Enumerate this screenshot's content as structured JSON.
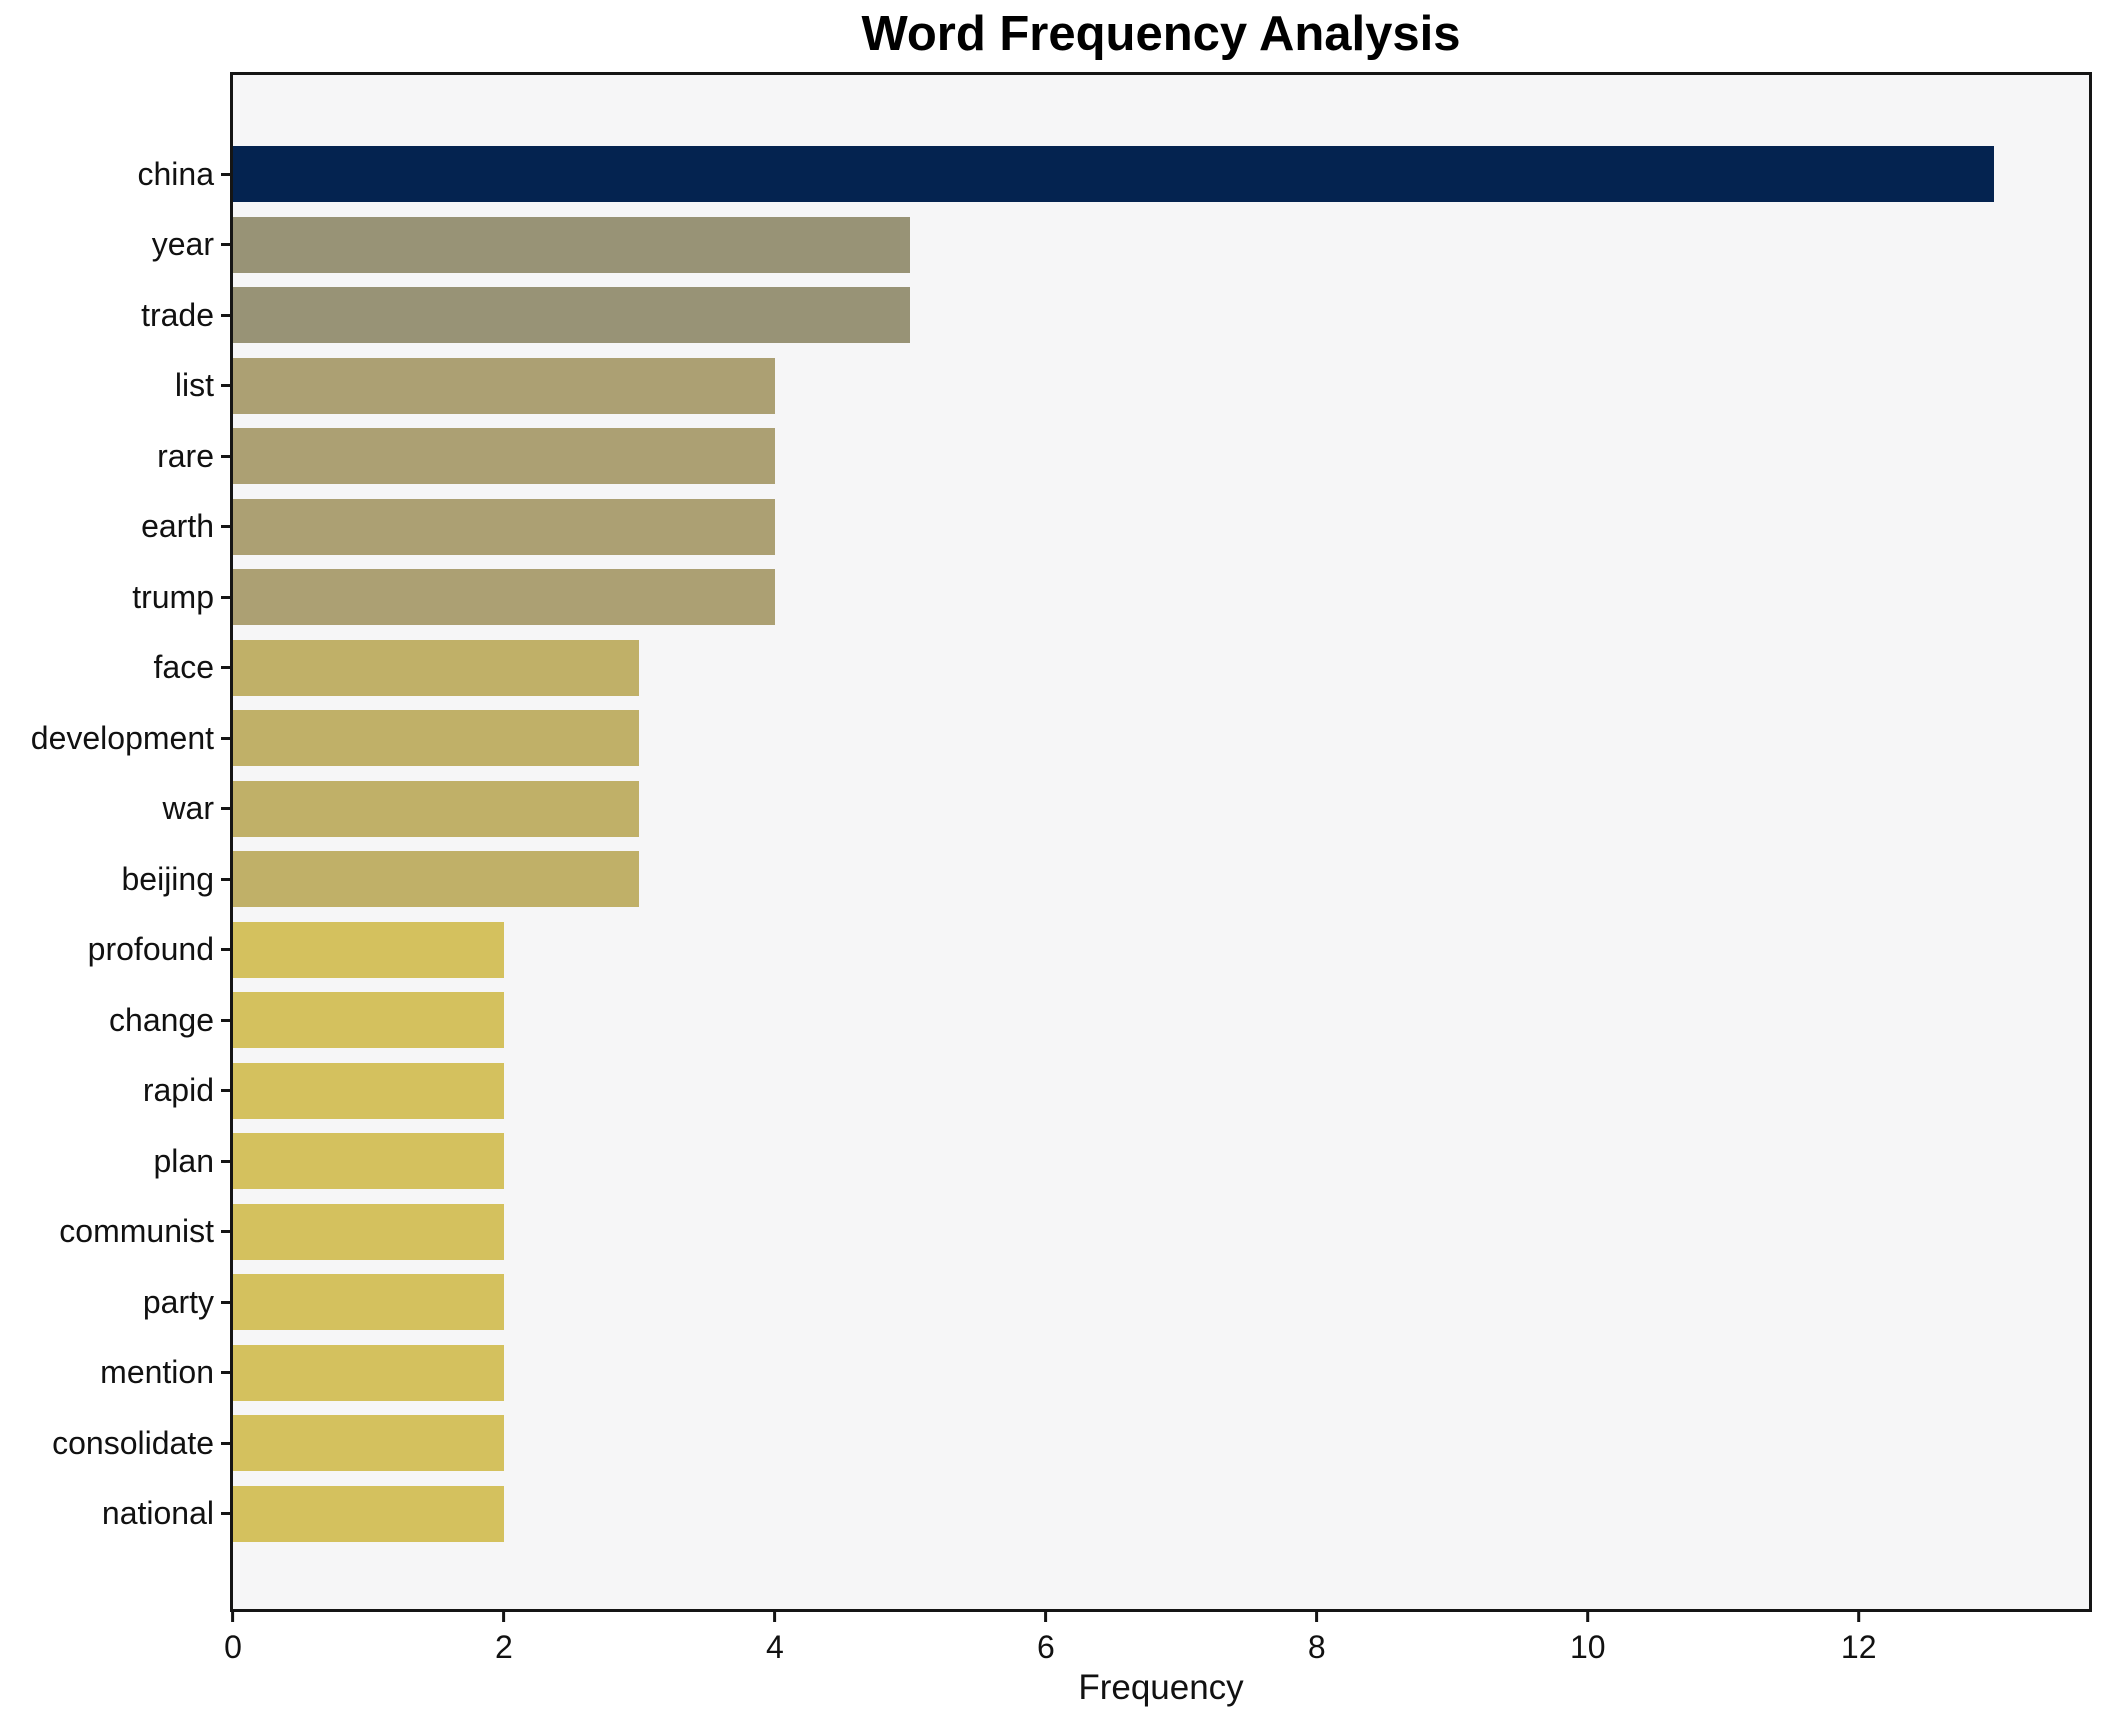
{
  "title": "Word Frequency Analysis",
  "chart_data": {
    "type": "bar",
    "orientation": "horizontal",
    "title": "Word Frequency Analysis",
    "xlabel": "Frequency",
    "ylabel": "",
    "categories": [
      "china",
      "year",
      "trade",
      "list",
      "rare",
      "earth",
      "trump",
      "face",
      "development",
      "war",
      "beijing",
      "profound",
      "change",
      "rapid",
      "plan",
      "communist",
      "party",
      "mention",
      "consolidate",
      "national"
    ],
    "values": [
      13,
      5,
      5,
      4,
      4,
      4,
      4,
      3,
      3,
      3,
      3,
      2,
      2,
      2,
      2,
      2,
      2,
      2,
      2,
      2
    ],
    "bar_colors": [
      "#042350",
      "#989376",
      "#989376",
      "#aca073",
      "#aca073",
      "#aca073",
      "#aca073",
      "#c0b068",
      "#c0b068",
      "#c0b068",
      "#c0b068",
      "#d4c15e",
      "#d4c15e",
      "#d4c15e",
      "#d4c15e",
      "#d4c15e",
      "#d4c15e",
      "#d4c15e",
      "#d4c15e",
      "#d4c15e"
    ],
    "xlim": [
      0,
      13.7
    ],
    "x_ticks": [
      0,
      2,
      4,
      6,
      8,
      10,
      12
    ],
    "grid": false,
    "legend": null,
    "plot_background": "#f6f6f7",
    "figure_background": "#ffffff",
    "spine_color": "#151515",
    "text_color": "#111111"
  }
}
